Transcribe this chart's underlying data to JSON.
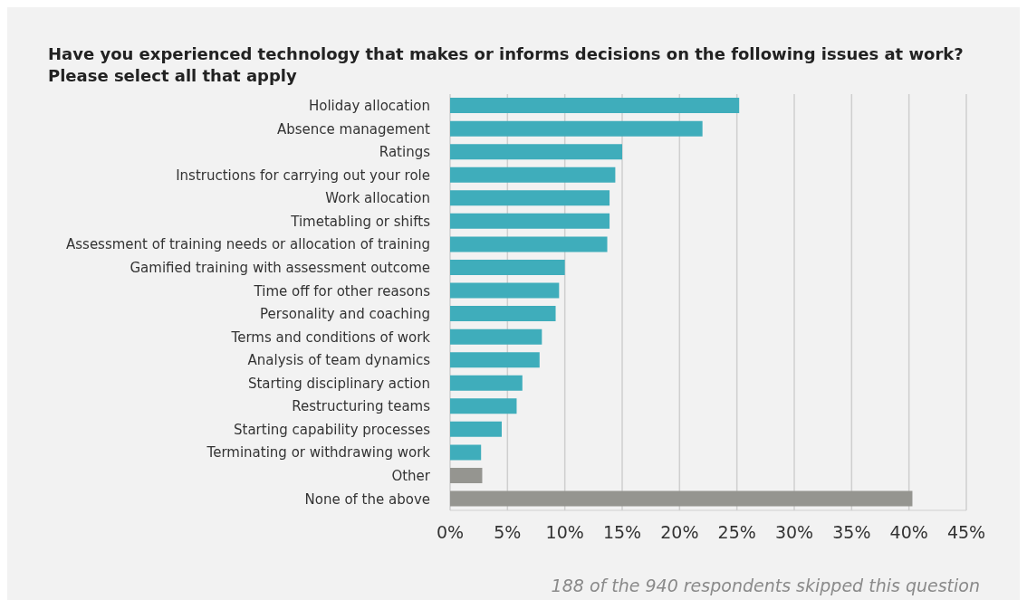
{
  "chart_data": {
    "type": "bar",
    "orientation": "horizontal",
    "title": "Have you experienced technology that makes or informs decisions on the following issues at work?",
    "subtitle": "Please select all that apply",
    "categories": [
      "Holiday allocation",
      "Absence management",
      "Ratings",
      "Instructions for carrying out your role",
      "Work allocation",
      "Timetabling or shifts",
      "Assessment of training needs or allocation of training",
      "Gamified training with assessment outcome",
      "Time off for other reasons",
      "Personality and coaching",
      "Terms and conditions of work",
      "Analysis of team dynamics",
      "Starting disciplinary action",
      "Restructuring teams",
      "Starting capability processes",
      "Terminating or withdrawing work",
      "Other",
      "None of the above"
    ],
    "values": [
      25.2,
      22.0,
      15.0,
      14.4,
      13.9,
      13.9,
      13.7,
      10.0,
      9.5,
      9.2,
      8.0,
      7.8,
      6.3,
      5.8,
      4.5,
      2.7,
      2.8,
      40.3
    ],
    "colors": [
      "#3fadbb",
      "#3fadbb",
      "#3fadbb",
      "#3fadbb",
      "#3fadbb",
      "#3fadbb",
      "#3fadbb",
      "#3fadbb",
      "#3fadbb",
      "#3fadbb",
      "#3fadbb",
      "#3fadbb",
      "#3fadbb",
      "#3fadbb",
      "#3fadbb",
      "#3fadbb",
      "#959590",
      "#959590"
    ],
    "xlim": [
      0,
      45
    ],
    "xticks": [
      {
        "value": 0,
        "label": "0%"
      },
      {
        "value": 5,
        "label": "5%"
      },
      {
        "value": 10,
        "label": "10%"
      },
      {
        "value": 15,
        "label": "15%"
      },
      {
        "value": 20,
        "label": "20%"
      },
      {
        "value": 25,
        "label": "25%"
      },
      {
        "value": 30,
        "label": "30%"
      },
      {
        "value": 35,
        "label": "35%"
      },
      {
        "value": 40,
        "label": "40%"
      },
      {
        "value": 45,
        "label": "45%"
      }
    ],
    "grid": "x",
    "legend": false,
    "annotations": [
      "188 of the 940 respondents skipped this question"
    ]
  }
}
